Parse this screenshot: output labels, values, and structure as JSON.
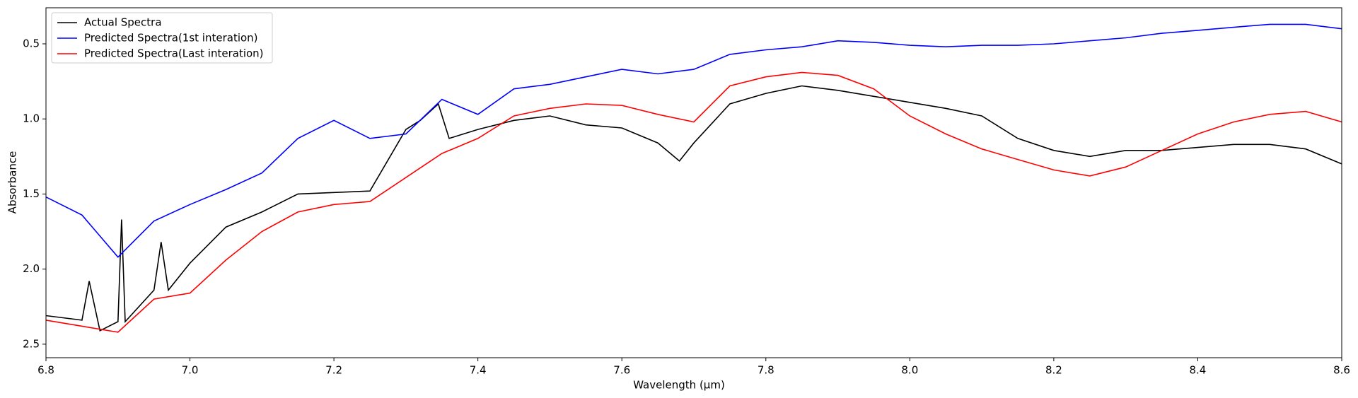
{
  "chart_data": {
    "type": "line",
    "xlabel": "Wavelength (μm)",
    "ylabel": "Absorbance",
    "xlim": [
      6.8,
      8.6
    ],
    "xticks": [
      6.8,
      {
        "value": 7,
        "label": "7.0"
      },
      7.2,
      7.4,
      7.6,
      7.8,
      {
        "value": 8,
        "label": "8.0"
      },
      8.2,
      8.4,
      8.6
    ],
    "ylim": [
      2.59,
      0.26
    ],
    "yticks": [
      0.5,
      {
        "value": 1,
        "label": "1.0"
      },
      1.5,
      {
        "value": 2,
        "label": "2.0"
      },
      2.5
    ],
    "legend": "upper left",
    "series": [
      {
        "name": "Actual Spectra",
        "color": "#000000",
        "x": [
          6.8,
          6.85,
          6.86,
          6.875,
          6.9,
          6.905,
          6.91,
          6.95,
          6.96,
          6.97,
          7.0,
          7.05,
          7.1,
          7.15,
          7.2,
          7.25,
          7.3,
          7.32,
          7.345,
          7.36,
          7.4,
          7.45,
          7.5,
          7.55,
          7.6,
          7.65,
          7.68,
          7.7,
          7.75,
          7.8,
          7.85,
          7.9,
          7.95,
          8.0,
          8.05,
          8.1,
          8.15,
          8.2,
          8.25,
          8.3,
          8.35,
          8.4,
          8.45,
          8.5,
          8.55,
          8.6
        ],
        "values": [
          2.31,
          2.34,
          2.08,
          2.41,
          2.35,
          1.67,
          2.35,
          2.14,
          1.82,
          2.14,
          1.96,
          1.72,
          1.62,
          1.5,
          1.49,
          1.48,
          1.07,
          1.01,
          0.9,
          1.13,
          1.07,
          1.01,
          0.98,
          1.04,
          1.06,
          1.16,
          1.28,
          1.16,
          0.9,
          0.83,
          0.78,
          0.81,
          0.85,
          0.89,
          0.93,
          0.98,
          1.13,
          1.21,
          1.25,
          1.21,
          1.21,
          1.19,
          1.17,
          1.17,
          1.2,
          1.3
        ]
      },
      {
        "name": "Predicted Spectra(1st interation)",
        "color": "#0000ff",
        "x": [
          6.8,
          6.85,
          6.9,
          6.95,
          7.0,
          7.05,
          7.1,
          7.15,
          7.2,
          7.25,
          7.3,
          7.35,
          7.4,
          7.45,
          7.5,
          7.55,
          7.6,
          7.65,
          7.7,
          7.75,
          7.8,
          7.85,
          7.9,
          7.95,
          8.0,
          8.05,
          8.1,
          8.15,
          8.2,
          8.25,
          8.3,
          8.35,
          8.4,
          8.45,
          8.5,
          8.55,
          8.6
        ],
        "values": [
          1.52,
          1.64,
          1.92,
          1.68,
          1.57,
          1.47,
          1.36,
          1.13,
          1.01,
          1.13,
          1.1,
          0.87,
          0.97,
          0.8,
          0.77,
          0.72,
          0.67,
          0.7,
          0.67,
          0.57,
          0.54,
          0.52,
          0.48,
          0.49,
          0.51,
          0.52,
          0.51,
          0.51,
          0.5,
          0.48,
          0.46,
          0.43,
          0.41,
          0.39,
          0.37,
          0.37,
          0.4
        ]
      },
      {
        "name": "Predicted Spectra(Last interation)",
        "color": "#ff0000",
        "x": [
          6.8,
          6.85,
          6.9,
          6.95,
          7.0,
          7.05,
          7.1,
          7.15,
          7.2,
          7.25,
          7.3,
          7.35,
          7.4,
          7.45,
          7.5,
          7.55,
          7.6,
          7.65,
          7.7,
          7.75,
          7.8,
          7.85,
          7.9,
          7.95,
          8.0,
          8.05,
          8.1,
          8.15,
          8.2,
          8.25,
          8.3,
          8.35,
          8.4,
          8.45,
          8.5,
          8.55,
          8.6
        ],
        "values": [
          2.34,
          2.38,
          2.42,
          2.2,
          2.16,
          1.94,
          1.75,
          1.62,
          1.57,
          1.55,
          1.39,
          1.23,
          1.13,
          0.98,
          0.93,
          0.9,
          0.91,
          0.97,
          1.02,
          0.78,
          0.72,
          0.69,
          0.71,
          0.8,
          0.98,
          1.1,
          1.2,
          1.27,
          1.34,
          1.38,
          1.32,
          1.21,
          1.1,
          1.02,
          0.97,
          0.95,
          1.02
        ]
      }
    ]
  }
}
